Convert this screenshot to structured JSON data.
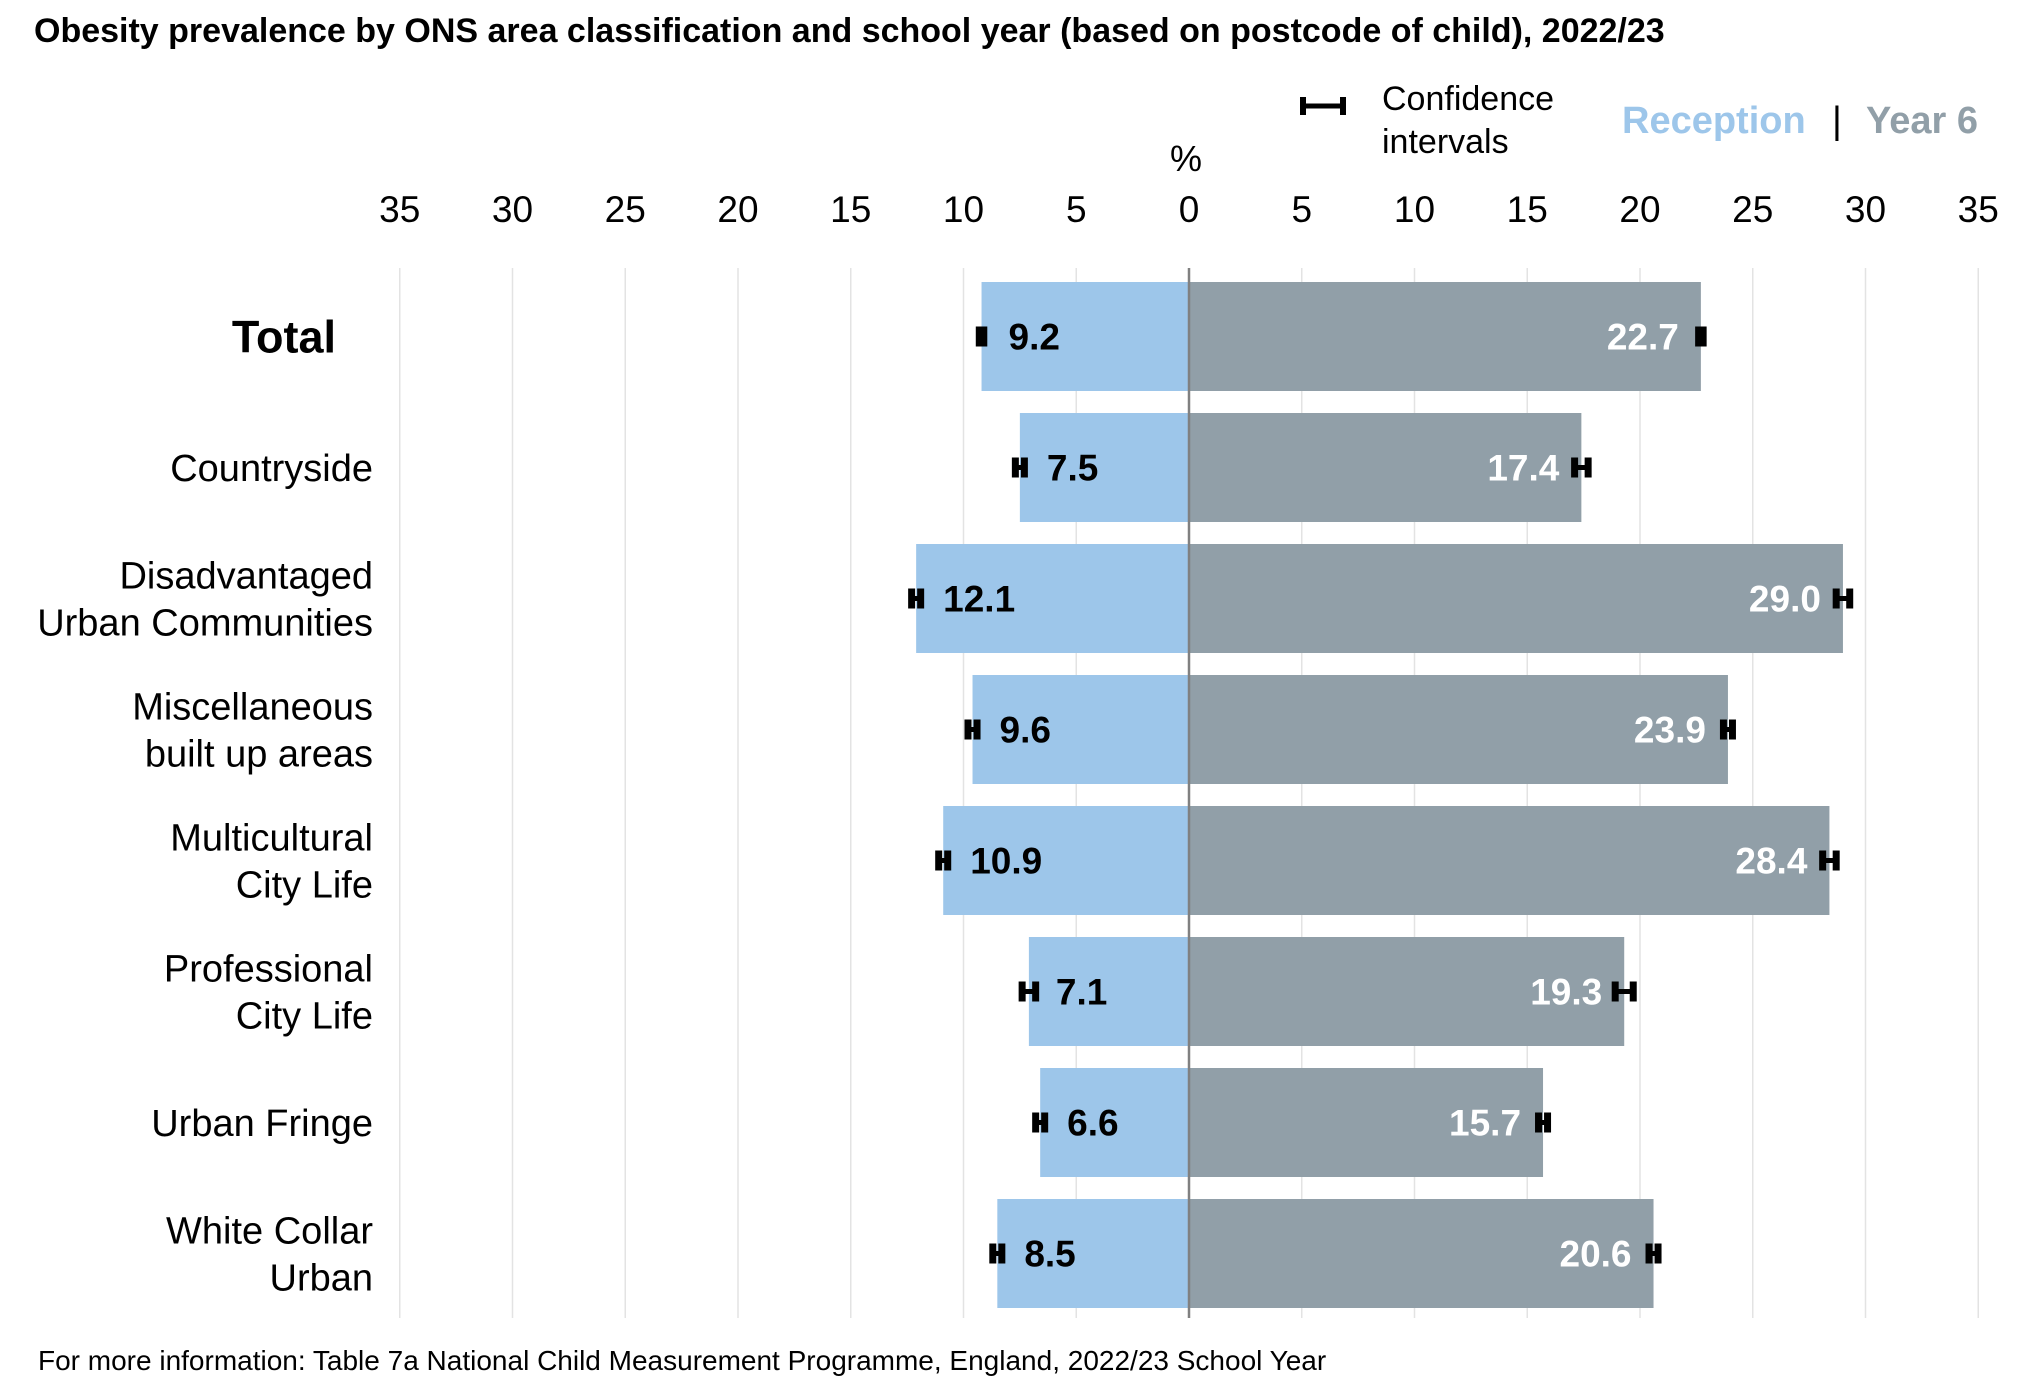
{
  "title": "Obesity prevalence by ONS area classification and school year (based on postcode of child), 2022/23",
  "unit_label": "%",
  "legend": {
    "ci_label_line1": "Confidence",
    "ci_label_line2": "intervals",
    "reception_label": "Reception",
    "separator": "|",
    "year6_label": "Year 6"
  },
  "footer": "For more information: Table 7a National Child Measurement Programme, England, 2022/23 School Year",
  "colors": {
    "reception": "#9DC6EA",
    "year6": "#919FA8",
    "reception_text": "#9DC6EA",
    "year6_text": "#919FA8",
    "axis": "#808080",
    "grid": "#e3e3e3"
  },
  "chart_data": {
    "type": "bar",
    "orientation": "horizontal-butterfly",
    "axis_ticks": [
      "35",
      "30",
      "25",
      "20",
      "15",
      "10",
      "5",
      "0",
      "5",
      "10",
      "15",
      "20",
      "25",
      "30",
      "35"
    ],
    "xlim": [
      -35,
      35
    ],
    "grid": true,
    "categories": [
      [
        "Total"
      ],
      [
        "Countryside"
      ],
      [
        "Disadvantaged",
        "Urban Communities"
      ],
      [
        "Miscellaneous",
        "built up areas"
      ],
      [
        "Multicultural",
        "City Life"
      ],
      [
        "Professional",
        "City Life"
      ],
      [
        "Urban Fringe"
      ],
      [
        "White Collar",
        "Urban"
      ]
    ],
    "series": [
      {
        "name": "Reception",
        "side": "left",
        "values": [
          9.2,
          7.5,
          12.1,
          9.6,
          10.9,
          7.1,
          6.6,
          8.5
        ],
        "labels": [
          "9.2",
          "7.5",
          "12.1",
          "9.6",
          "10.9",
          "7.1",
          "6.6",
          "8.5"
        ],
        "ci_lower": [
          9.1,
          7.3,
          11.9,
          9.4,
          10.7,
          6.8,
          6.4,
          8.3
        ],
        "ci_upper": [
          9.3,
          7.7,
          12.3,
          9.8,
          11.1,
          7.4,
          6.8,
          8.7
        ]
      },
      {
        "name": "Year 6",
        "side": "right",
        "values": [
          22.7,
          17.4,
          29.0,
          23.9,
          28.4,
          19.3,
          15.7,
          20.6
        ],
        "labels": [
          "22.7",
          "17.4",
          "29.0",
          "23.9",
          "28.4",
          "19.3",
          "15.7",
          "20.6"
        ],
        "ci_lower": [
          22.6,
          17.1,
          28.7,
          23.7,
          28.1,
          18.9,
          15.5,
          20.4
        ],
        "ci_upper": [
          22.8,
          17.7,
          29.3,
          24.1,
          28.7,
          19.7,
          15.9,
          20.8
        ]
      }
    ]
  }
}
